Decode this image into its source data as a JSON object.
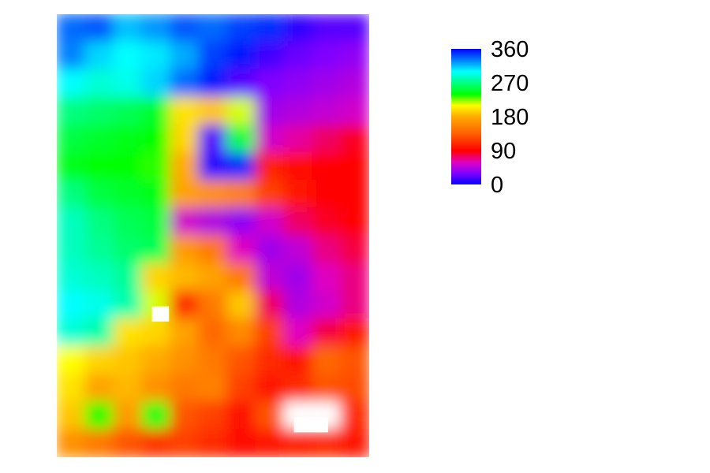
{
  "chart_data": {
    "type": "heatmap",
    "title": "",
    "xlabel": "",
    "ylabel": "",
    "value_range": [
      0,
      360
    ],
    "colorbar": {
      "placement": "right",
      "ticks": [
        "360",
        "270",
        "180",
        "90",
        "0"
      ],
      "tick_values": [
        360,
        270,
        180,
        90,
        0
      ],
      "palette_stops": [
        {
          "value": 0,
          "color": "#0000ff"
        },
        {
          "value": 30,
          "color": "#8000ff"
        },
        {
          "value": 60,
          "color": "#e000c0"
        },
        {
          "value": 90,
          "color": "#ff0000"
        },
        {
          "value": 135,
          "color": "#ff6000"
        },
        {
          "value": 180,
          "color": "#ffaa00"
        },
        {
          "value": 210,
          "color": "#ffff00"
        },
        {
          "value": 240,
          "color": "#00ff00"
        },
        {
          "value": 270,
          "color": "#00ff80"
        },
        {
          "value": 300,
          "color": "#00ffff"
        },
        {
          "value": 330,
          "color": "#0080ff"
        },
        {
          "value": 360,
          "color": "#0000ff"
        }
      ]
    },
    "grid_rows": 16,
    "grid_cols": 11,
    "values": [
      [
        335,
        340,
        315,
        325,
        340,
        335,
        345,
        350,
        10,
        20,
        20
      ],
      [
        330,
        310,
        300,
        305,
        320,
        345,
        355,
        15,
        25,
        30,
        35
      ],
      [
        300,
        290,
        295,
        310,
        335,
        355,
        20,
        30,
        35,
        40,
        45
      ],
      [
        270,
        265,
        260,
        250,
        200,
        190,
        215,
        40,
        45,
        50,
        55
      ],
      [
        255,
        250,
        245,
        240,
        195,
        20,
        255,
        55,
        65,
        75,
        85
      ],
      [
        245,
        240,
        240,
        235,
        180,
        10,
        350,
        105,
        95,
        90,
        90
      ],
      [
        270,
        255,
        250,
        245,
        175,
        165,
        155,
        120,
        100,
        90,
        90
      ],
      [
        285,
        270,
        260,
        255,
        55,
        45,
        35,
        55,
        75,
        85,
        90
      ],
      [
        285,
        275,
        265,
        260,
        170,
        150,
        60,
        40,
        50,
        70,
        80
      ],
      [
        290,
        285,
        275,
        195,
        185,
        175,
        150,
        50,
        40,
        60,
        70
      ],
      [
        300,
        295,
        280,
        215,
        110,
        150,
        190,
        75,
        45,
        55,
        70
      ],
      [
        290,
        280,
        200,
        195,
        175,
        140,
        160,
        120,
        60,
        80,
        100
      ],
      [
        210,
        195,
        190,
        180,
        165,
        150,
        130,
        110,
        100,
        140,
        130
      ],
      [
        200,
        175,
        185,
        165,
        150,
        155,
        120,
        100,
        110,
        130,
        125
      ],
      [
        190,
        240,
        170,
        245,
        130,
        120,
        95,
        130,
        null,
        null,
        110
      ],
      [
        165,
        150,
        130,
        115,
        120,
        110,
        95,
        100,
        105,
        110,
        100
      ]
    ],
    "masked_regions": [
      {
        "row_range": [
          10,
          11
        ],
        "col_range": [
          3,
          4
        ]
      },
      {
        "row_range": [
          14,
          15
        ],
        "col_range": [
          8,
          10
        ]
      }
    ]
  }
}
